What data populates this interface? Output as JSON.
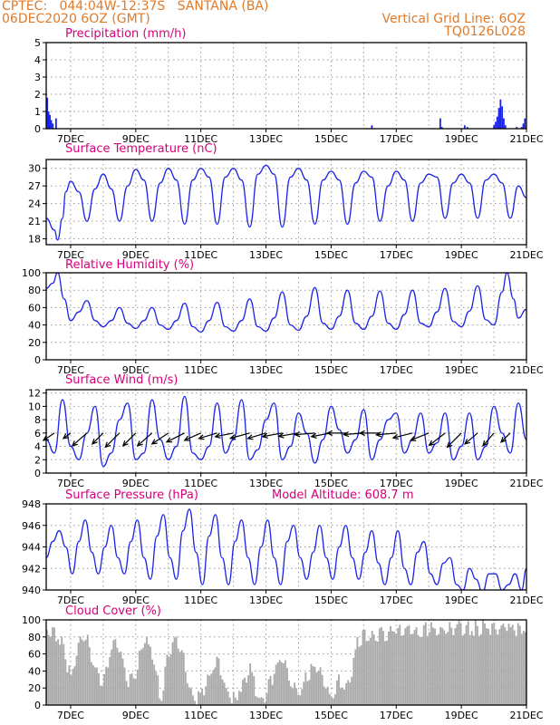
{
  "header": {
    "line1_left": "CPTEC:   044:04W-12:37S   SANTANA (BA)",
    "line2_left": "06DEC2020 6OZ (GMT)",
    "line2_right": "Vertical Grid Line: 6OZ",
    "line3_right": "TQ0126L028"
  },
  "colors": {
    "header": "#e07a28",
    "title": "#d6007a",
    "line": "#1d24e6",
    "bar": "#1d24e6",
    "cloud": "#a9a9a9",
    "arrow": "#000000"
  },
  "chart_data": [
    {
      "id": "precip",
      "type": "bar",
      "title": "Precipitation (mm/h)",
      "x_ticks": [
        "7DEC",
        "9DEC",
        "11DEC",
        "13DEC",
        "15DEC",
        "17DEC",
        "19DEC",
        "21DEC"
      ],
      "xlim_days": [
        6.25,
        21.0
      ],
      "ylim": [
        0,
        5
      ],
      "y_ticks": [
        0,
        1,
        2,
        3,
        4,
        5
      ],
      "grid": true,
      "x_days": [
        6.28,
        6.32,
        6.36,
        6.4,
        6.45,
        6.55,
        16.25,
        18.35,
        18.4,
        19.1,
        19.18,
        20.0,
        20.05,
        20.1,
        20.15,
        20.2,
        20.25,
        20.3,
        20.35,
        20.7,
        20.85,
        20.9,
        20.95
      ],
      "values": [
        1.8,
        1.0,
        0.8,
        0.5,
        0.3,
        0.6,
        0.2,
        0.6,
        0.1,
        0.2,
        0.1,
        0.2,
        0.4,
        0.7,
        1.2,
        1.7,
        1.3,
        0.6,
        0.2,
        0.1,
        0.1,
        0.3,
        0.6
      ]
    },
    {
      "id": "temp",
      "type": "line",
      "title": "Surface Temperature (nC)",
      "x_ticks": [
        "7DEC",
        "9DEC",
        "11DEC",
        "13DEC",
        "15DEC",
        "17DEC",
        "19DEC",
        "21DEC"
      ],
      "xlim_days": [
        6.25,
        21.0
      ],
      "ylim": [
        17,
        31.5
      ],
      "y_ticks": [
        18,
        21,
        24,
        27,
        30
      ],
      "grid": true,
      "x_days": [
        6.25,
        6.5,
        6.6,
        6.75,
        6.85,
        7.0,
        7.25,
        7.5,
        7.75,
        8.0,
        8.25,
        8.5,
        8.75,
        9.0,
        9.25,
        9.5,
        9.75,
        10.0,
        10.25,
        10.5,
        10.75,
        11.0,
        11.25,
        11.5,
        11.75,
        12.0,
        12.25,
        12.5,
        12.75,
        13.0,
        13.25,
        13.5,
        13.75,
        14.0,
        14.25,
        14.5,
        14.75,
        15.0,
        15.25,
        15.5,
        15.75,
        16.0,
        16.25,
        16.5,
        16.75,
        17.0,
        17.25,
        17.5,
        17.75,
        18.0,
        18.25,
        18.5,
        18.75,
        19.0,
        19.25,
        19.5,
        19.75,
        20.0,
        20.25,
        20.5,
        20.75,
        21.0
      ],
      "values": [
        21.5,
        19.5,
        17.8,
        21.5,
        26.0,
        27.8,
        26.0,
        21.0,
        26.5,
        29.0,
        26.5,
        21.0,
        27.0,
        29.8,
        28.0,
        21.0,
        27.5,
        30.0,
        28.0,
        20.5,
        28.0,
        30.0,
        28.5,
        20.5,
        28.5,
        30.0,
        28.0,
        20.0,
        29.0,
        30.5,
        29.0,
        20.0,
        28.5,
        30.0,
        28.0,
        20.5,
        28.0,
        29.5,
        28.0,
        20.5,
        27.5,
        29.5,
        28.5,
        21.0,
        27.0,
        29.5,
        28.0,
        21.0,
        27.5,
        29.0,
        28.5,
        21.5,
        27.5,
        29.0,
        27.5,
        21.5,
        28.0,
        29.0,
        27.5,
        21.5,
        27.0,
        25.0
      ]
    },
    {
      "id": "rh",
      "type": "line",
      "title": "Relative Humidity (%)",
      "x_ticks": [
        "7DEC",
        "9DEC",
        "11DEC",
        "13DEC",
        "15DEC",
        "17DEC",
        "19DEC",
        "21DEC"
      ],
      "xlim_days": [
        6.25,
        21.0
      ],
      "ylim": [
        0,
        100
      ],
      "y_ticks": [
        0,
        20,
        40,
        60,
        80,
        100
      ],
      "grid": true,
      "x_days": [
        6.25,
        6.45,
        6.6,
        6.8,
        7.0,
        7.25,
        7.5,
        7.75,
        8.0,
        8.25,
        8.5,
        8.75,
        9.0,
        9.25,
        9.5,
        9.75,
        10.0,
        10.25,
        10.5,
        10.75,
        11.0,
        11.25,
        11.5,
        11.75,
        12.0,
        12.25,
        12.5,
        12.75,
        13.0,
        13.25,
        13.5,
        13.75,
        14.0,
        14.25,
        14.5,
        14.75,
        15.0,
        15.25,
        15.5,
        15.75,
        16.0,
        16.25,
        16.5,
        16.75,
        17.0,
        17.25,
        17.5,
        17.75,
        18.0,
        18.25,
        18.5,
        18.75,
        19.0,
        19.25,
        19.5,
        19.75,
        20.0,
        20.25,
        20.4,
        20.6,
        20.75,
        21.0
      ],
      "values": [
        82,
        88,
        100,
        70,
        45,
        55,
        68,
        45,
        38,
        45,
        60,
        42,
        36,
        45,
        60,
        40,
        35,
        45,
        65,
        38,
        32,
        45,
        66,
        38,
        33,
        45,
        70,
        38,
        33,
        48,
        78,
        40,
        34,
        50,
        83,
        42,
        35,
        50,
        80,
        42,
        35,
        50,
        79,
        42,
        35,
        52,
        80,
        42,
        38,
        55,
        82,
        44,
        38,
        56,
        85,
        46,
        40,
        78,
        100,
        70,
        48,
        58
      ]
    },
    {
      "id": "wind",
      "type": "line",
      "title": "Surface Wind (m/s)",
      "x_ticks": [
        "7DEC",
        "9DEC",
        "11DEC",
        "13DEC",
        "15DEC",
        "17DEC",
        "19DEC",
        "21DEC"
      ],
      "xlim_days": [
        6.25,
        21.0
      ],
      "ylim": [
        0,
        12.5
      ],
      "y_ticks": [
        0,
        2,
        4,
        6,
        8,
        10,
        12
      ],
      "grid": true,
      "x_days": [
        6.25,
        6.5,
        6.75,
        7.0,
        7.25,
        7.5,
        7.75,
        8.0,
        8.25,
        8.5,
        8.75,
        9.0,
        9.25,
        9.5,
        9.75,
        10.0,
        10.25,
        10.5,
        10.75,
        11.0,
        11.25,
        11.5,
        11.75,
        12.0,
        12.25,
        12.5,
        12.75,
        13.0,
        13.25,
        13.5,
        13.75,
        14.0,
        14.25,
        14.5,
        14.75,
        15.0,
        15.25,
        15.5,
        15.75,
        16.0,
        16.25,
        16.5,
        16.75,
        17.0,
        17.25,
        17.5,
        17.75,
        18.0,
        18.25,
        18.5,
        18.75,
        19.0,
        19.25,
        19.5,
        19.75,
        20.0,
        20.25,
        20.5,
        20.75,
        21.0
      ],
      "values": [
        5.0,
        3.0,
        11.0,
        4.0,
        2.0,
        6.0,
        10.0,
        1.0,
        3.0,
        8.0,
        10.5,
        2.0,
        3.0,
        11.0,
        5.0,
        2.0,
        4.0,
        11.5,
        3.0,
        2.0,
        4.0,
        10.5,
        3.0,
        5.0,
        11.0,
        2.0,
        3.5,
        8.0,
        10.5,
        2.0,
        4.0,
        9.0,
        6.0,
        1.5,
        5.0,
        10.0,
        6.5,
        3.0,
        5.0,
        9.5,
        2.0,
        5.0,
        8.0,
        9.0,
        3.0,
        5.0,
        9.0,
        3.0,
        4.5,
        9.0,
        2.0,
        4.0,
        9.0,
        2.0,
        4.0,
        10.0,
        6.0,
        3.0,
        10.5,
        5.0
      ],
      "arrows": {
        "x_days": [
          6.5,
          7.0,
          7.5,
          8.0,
          8.5,
          9.0,
          9.5,
          10.0,
          10.5,
          11.0,
          11.5,
          12.0,
          12.5,
          13.0,
          13.5,
          14.0,
          14.5,
          15.0,
          15.5,
          16.0,
          16.5,
          17.0,
          17.5,
          18.0,
          18.5,
          19.0,
          19.5,
          20.0,
          20.5
        ],
        "u": [
          -3.0,
          -2.0,
          -4.0,
          -3.0,
          -4.0,
          -3.5,
          -4.0,
          -4.5,
          -5.0,
          -4.5,
          -5.0,
          -5.0,
          -5.5,
          -5.0,
          -5.5,
          -6.0,
          -6.0,
          -5.5,
          -6.0,
          -6.5,
          -5.5,
          -5.5,
          -6.0,
          -5.0,
          -4.5,
          -4.0,
          -3.5,
          -3.0,
          -2.5
        ],
        "v": [
          -2.0,
          -1.5,
          -3.5,
          -3.0,
          -4.0,
          -3.5,
          -3.5,
          -3.0,
          -2.5,
          -2.0,
          -1.5,
          -1.0,
          -1.5,
          -1.5,
          -1.0,
          -1.0,
          -0.5,
          -1.0,
          0.0,
          -0.5,
          0.0,
          -0.5,
          -1.5,
          -2.0,
          -3.5,
          -4.0,
          -3.0,
          -3.5,
          -2.5
        ]
      }
    },
    {
      "id": "pressure",
      "type": "line",
      "title": "Surface Pressure (hPa)",
      "annotation": "Model Altitude: 608.7 m",
      "x_ticks": [
        "7DEC",
        "9DEC",
        "11DEC",
        "13DEC",
        "15DEC",
        "17DEC",
        "19DEC",
        "21DEC"
      ],
      "xlim_days": [
        6.25,
        21.0
      ],
      "ylim": [
        940,
        948
      ],
      "y_ticks": [
        940,
        942,
        944,
        946,
        948
      ],
      "grid": true,
      "x_days": [
        6.25,
        6.45,
        6.65,
        6.85,
        7.05,
        7.25,
        7.45,
        7.65,
        7.85,
        8.05,
        8.25,
        8.45,
        8.65,
        8.85,
        9.05,
        9.25,
        9.45,
        9.65,
        9.85,
        10.05,
        10.25,
        10.45,
        10.65,
        10.85,
        11.05,
        11.25,
        11.45,
        11.65,
        11.85,
        12.05,
        12.25,
        12.45,
        12.65,
        12.85,
        13.05,
        13.25,
        13.45,
        13.65,
        13.85,
        14.05,
        14.25,
        14.45,
        14.65,
        14.85,
        15.05,
        15.25,
        15.45,
        15.65,
        15.85,
        16.05,
        16.25,
        16.45,
        16.65,
        16.85,
        17.05,
        17.25,
        17.45,
        17.65,
        17.85,
        18.05,
        18.25,
        18.45,
        18.65,
        18.85,
        19.05,
        19.25,
        19.45,
        19.65,
        19.85,
        20.05,
        20.25,
        20.45,
        20.65,
        20.85,
        21.0
      ],
      "values": [
        943.0,
        944.5,
        945.5,
        944.0,
        941.5,
        944.5,
        946.5,
        943.5,
        941.5,
        944.0,
        946.0,
        943.0,
        941.5,
        944.5,
        946.5,
        943.0,
        941.0,
        945.0,
        947.0,
        943.0,
        941.0,
        945.5,
        947.5,
        943.5,
        940.5,
        945.0,
        947.0,
        943.0,
        940.5,
        944.5,
        946.5,
        943.0,
        940.5,
        944.0,
        946.5,
        943.0,
        940.5,
        944.5,
        946.0,
        943.0,
        941.0,
        943.5,
        946.0,
        943.0,
        941.0,
        944.0,
        946.0,
        943.0,
        941.0,
        943.5,
        945.5,
        942.5,
        940.5,
        943.0,
        945.5,
        942.0,
        940.5,
        943.5,
        944.5,
        941.5,
        940.5,
        942.5,
        943.0,
        940.5,
        940.0,
        942.0,
        941.0,
        939.8,
        941.5,
        941.5,
        940.0,
        940.5,
        941.5,
        940.0,
        942.0
      ]
    },
    {
      "id": "cloud",
      "type": "area",
      "title": "Cloud Cover (%)",
      "x_ticks": [
        "7DEC",
        "9DEC",
        "11DEC",
        "13DEC",
        "15DEC",
        "17DEC",
        "19DEC",
        "21DEC"
      ],
      "xlim_days": [
        6.25,
        21.0
      ],
      "ylim": [
        0,
        100
      ],
      "y_ticks": [
        0,
        20,
        40,
        60,
        80,
        100
      ],
      "grid": true,
      "x_days": [
        6.25,
        6.5,
        6.75,
        7.0,
        7.25,
        7.5,
        7.75,
        8.0,
        8.25,
        8.5,
        8.75,
        9.0,
        9.25,
        9.5,
        9.75,
        10.0,
        10.25,
        10.5,
        10.75,
        11.0,
        11.25,
        11.5,
        11.75,
        12.0,
        12.25,
        12.5,
        12.75,
        13.0,
        13.25,
        13.5,
        13.75,
        14.0,
        14.25,
        14.5,
        14.75,
        15.0,
        15.25,
        15.5,
        15.75,
        16.0,
        16.25,
        16.5,
        16.75,
        17.0,
        17.25,
        17.5,
        17.75,
        18.0,
        18.25,
        18.5,
        18.75,
        19.0,
        19.25,
        19.5,
        19.75,
        20.0,
        20.25,
        20.5,
        20.75,
        21.0
      ],
      "values": [
        92,
        88,
        75,
        30,
        85,
        82,
        40,
        35,
        80,
        70,
        30,
        45,
        85,
        60,
        15,
        70,
        85,
        50,
        10,
        15,
        40,
        55,
        20,
        10,
        30,
        45,
        10,
        20,
        45,
        60,
        35,
        15,
        40,
        55,
        30,
        10,
        35,
        25,
        75,
        85,
        85,
        88,
        90,
        95,
        92,
        90,
        95,
        94,
        92,
        95,
        96,
        95,
        94,
        96,
        95,
        96,
        97,
        95,
        96,
        97
      ]
    }
  ]
}
